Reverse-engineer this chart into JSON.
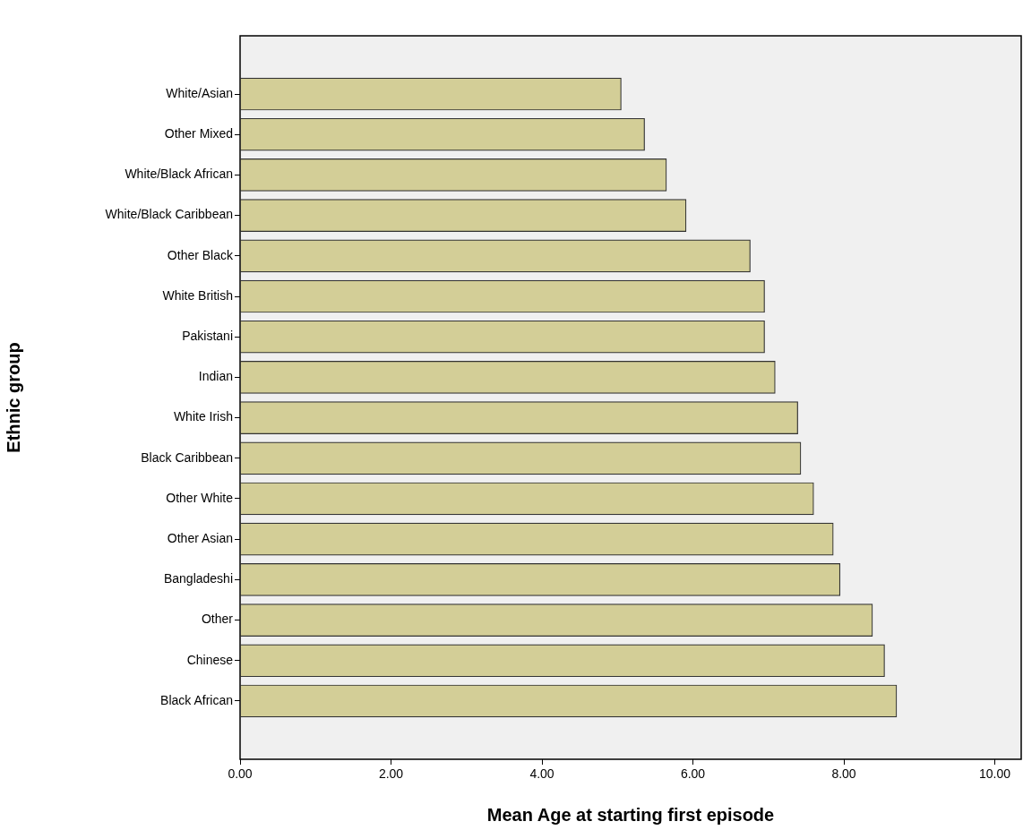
{
  "chart_data": {
    "type": "bar",
    "orientation": "horizontal",
    "categories": [
      "White/Asian",
      "Other Mixed",
      "White/Black African",
      "White/Black Caribbean",
      "Other Black",
      "White British",
      "Pakistani",
      "Indian",
      "White Irish",
      "Black Caribbean",
      "Other White",
      "Other Asian",
      "Bangladeshi",
      "Other",
      "Chinese",
      "Black African"
    ],
    "values": [
      5.05,
      5.36,
      5.65,
      5.91,
      6.76,
      6.95,
      6.95,
      7.09,
      7.39,
      7.43,
      7.6,
      7.86,
      7.95,
      8.38,
      8.54,
      8.7
    ],
    "color": "#d3ce97",
    "xlim": [
      0,
      10.35
    ],
    "xticks": [
      {
        "value": 0,
        "label": "0.00"
      },
      {
        "value": 2,
        "label": "2.00"
      },
      {
        "value": 4,
        "label": "4.00"
      },
      {
        "value": 6,
        "label": "6.00"
      },
      {
        "value": 8,
        "label": "8.00"
      },
      {
        "value": 10,
        "label": "10.00"
      }
    ],
    "xlabel": "Mean Age at starting first episode",
    "ylabel": "Ethnic group",
    "legend": false
  }
}
